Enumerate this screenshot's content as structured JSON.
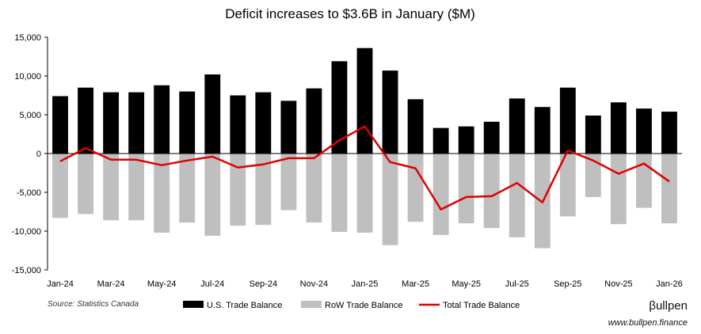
{
  "chart_data": {
    "type": "bar",
    "title": "Deficit increases to $3.6B in January ($M)",
    "xlabel": "",
    "ylabel": "",
    "ylim": [
      -15000,
      15000
    ],
    "yticks": [
      15000,
      10000,
      5000,
      0,
      -5000,
      -10000,
      -15000
    ],
    "ytick_labels": [
      "15,000",
      "10,000",
      "5,000",
      "0",
      "-5,000",
      "-10,000",
      "-15,000"
    ],
    "categories": [
      "Jan-24",
      "Feb-24",
      "Mar-24",
      "Apr-24",
      "May-24",
      "Jun-24",
      "Jul-24",
      "Aug-24",
      "Sep-24",
      "Oct-24",
      "Nov-24",
      "Dec-24",
      "Jan-25",
      "Feb-25",
      "Mar-25",
      "Apr-25",
      "May-25",
      "Jun-25",
      "Jul-25",
      "Aug-25",
      "Sep-25",
      "Oct-25",
      "Nov-25",
      "Dec-25",
      "Jan-26"
    ],
    "x_tick_labels": [
      "Jan-24",
      "Mar-24",
      "May-24",
      "Jul-24",
      "Sep-24",
      "Nov-24",
      "Jan-25",
      "Mar-25",
      "May-25",
      "Jul-25",
      "Sep-25",
      "Nov-25",
      "Jan-26"
    ],
    "series": [
      {
        "name": "U.S. Trade Balance",
        "kind": "bar",
        "color": "#000000",
        "values": [
          7400,
          8500,
          7900,
          7900,
          8800,
          8000,
          10200,
          7500,
          7900,
          6800,
          8400,
          11900,
          13600,
          10700,
          7000,
          3300,
          3500,
          4100,
          7100,
          6000,
          8500,
          4900,
          6600,
          5800,
          5400
        ]
      },
      {
        "name": "RoW Trade Balance",
        "kind": "bar",
        "color": "#bfbfbf",
        "values": [
          -8300,
          -7800,
          -8600,
          -8600,
          -10200,
          -8900,
          -10600,
          -9300,
          -9200,
          -7300,
          -8900,
          -10100,
          -10200,
          -11800,
          -8800,
          -10500,
          -9000,
          -9600,
          -10800,
          -12200,
          -8100,
          -5600,
          -9100,
          -7000,
          -9000
        ]
      },
      {
        "name": "Total Trade Balance",
        "kind": "line",
        "color": "#e00000",
        "values": [
          -1000,
          700,
          -800,
          -800,
          -1500,
          -900,
          -400,
          -1800,
          -1400,
          -600,
          -600,
          1700,
          3500,
          -1100,
          -1900,
          -7200,
          -5600,
          -5500,
          -3800,
          -6300,
          400,
          -900,
          -2600,
          -1300,
          -3600
        ]
      }
    ],
    "legend_position": "bottom",
    "grid": false
  },
  "footer": {
    "source": "Source: Statistics Canada",
    "brand": "βullpen",
    "url": "www.bullpen.finance"
  }
}
